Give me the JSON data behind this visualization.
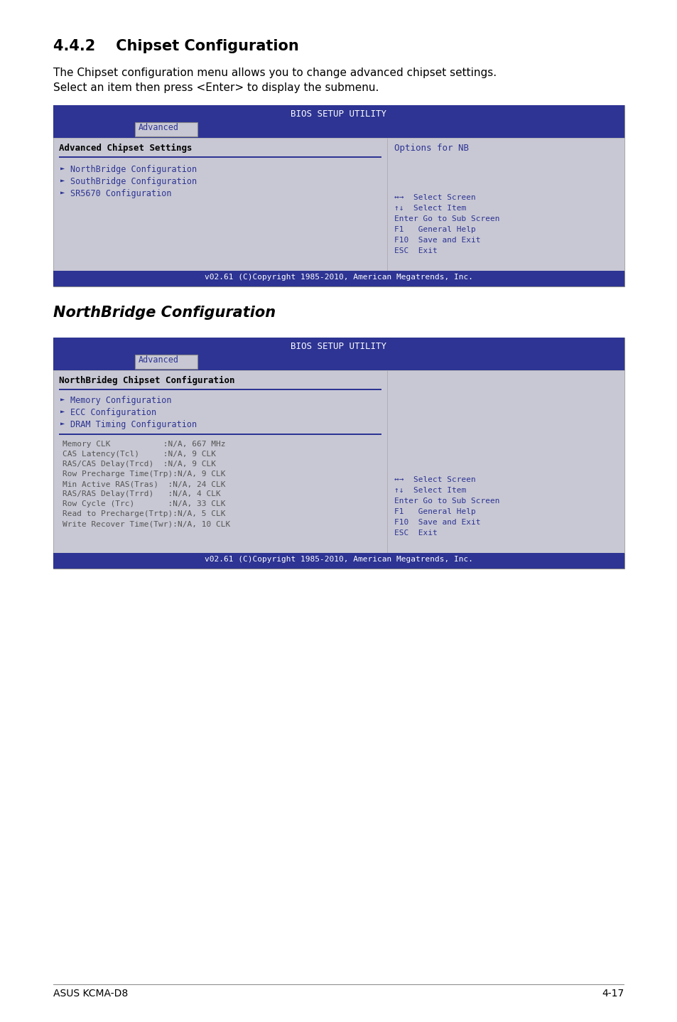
{
  "title1": "4.4.2    Chipset Configuration",
  "desc1_line1": "The Chipset configuration menu allows you to change advanced chipset settings.",
  "desc1_line2": "Select an item then press <Enter> to display the submenu.",
  "bios_title": "BIOS SETUP UTILITY",
  "advanced_tab": "Advanced",
  "panel1_left_header": "Advanced Chipset Settings",
  "panel1_right_header": "Options for NB",
  "panel1_items": [
    "NorthBridge Configuration",
    "SouthBridge Configuration",
    "SR5670 Configuration"
  ],
  "panel1_nav": [
    "↔→  Select Screen",
    "↑↓  Select Item",
    "Enter Go to Sub Screen",
    "F1   General Help",
    "F10  Save and Exit",
    "ESC  Exit"
  ],
  "panel1_footer": "v02.61 (C)Copyright 1985-2010, American Megatrends, Inc.",
  "title2": "NorthBridge Configuration",
  "panel2_left_header": "NorthBrideg Chipset Configuration",
  "panel2_items": [
    "Memory Configuration",
    "ECC Configuration",
    "DRAM Timing Configuration"
  ],
  "panel2_details": [
    "Memory CLK           :N/A, 667 MHz",
    "CAS Latency(Tcl)     :N/A, 9 CLK",
    "RAS/CAS Delay(Trcd)  :N/A, 9 CLK",
    "Row Precharge Time(Trp):N/A, 9 CLK",
    "Min Active RAS(Tras)  :N/A, 24 CLK",
    "RAS/RAS Delay(Trrd)   :N/A, 4 CLK",
    "Row Cycle (Trc)       :N/A, 33 CLK",
    "Read to Precharge(Trtp):N/A, 5 CLK",
    "Write Recover Time(Twr):N/A, 10 CLK"
  ],
  "panel2_nav": [
    "↔→  Select Screen",
    "↑↓  Select Item",
    "Enter Go to Sub Screen",
    "F1   General Help",
    "F10  Save and Exit",
    "ESC  Exit"
  ],
  "panel2_footer": "v02.61 (C)Copyright 1985-2010, American Megatrends, Inc.",
  "footer_left": "ASUS KCMA-D8",
  "footer_right": "4-17",
  "bg_color": "#ffffff",
  "bios_header_color": "#2d3493",
  "panel_bg": "#c8c8d4",
  "item_color": "#2d3493",
  "nav_color": "#2d3493",
  "separator_color": "#2d3493",
  "detail_color": "#555555"
}
